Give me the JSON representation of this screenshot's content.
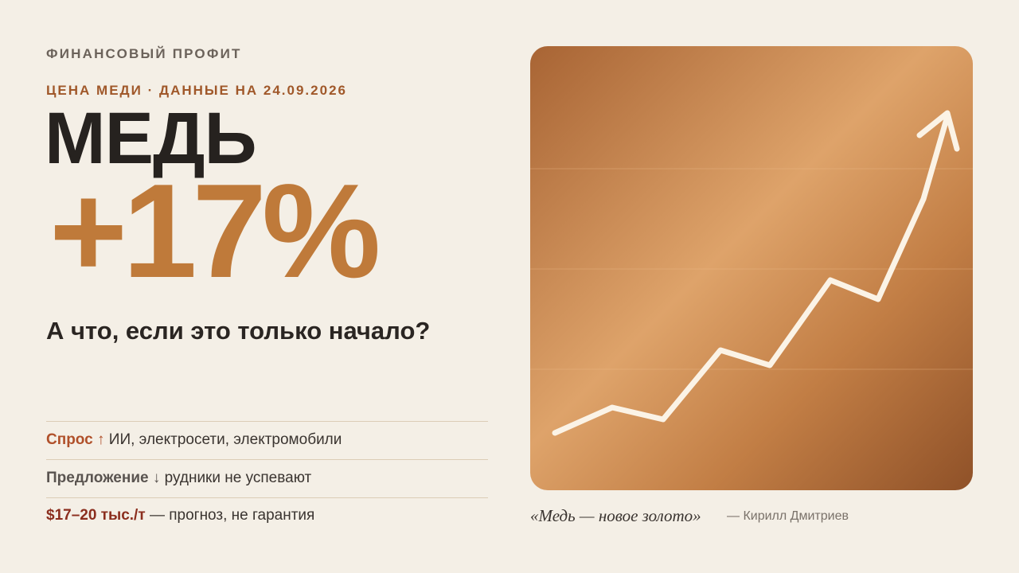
{
  "brand": "ФИНАНСОВЫЙ ПРОФИТ",
  "kicker": "ЦЕНА МЕДИ · ДАННЫЕ НА 24.09.2026",
  "title": "МЕДЬ",
  "headline_figure": "+17%",
  "question": "А что, если это только начало?",
  "points": [
    {
      "label": "Спрос",
      "arrow": "↑",
      "text": "ИИ, электросети, электромобили"
    },
    {
      "label": "Предложение",
      "arrow": "↓",
      "text": "рудники не успевают"
    },
    {
      "label": "$17–20 тыс./т",
      "text": "— прогноз, не гарантия"
    }
  ],
  "quote": {
    "text": "«Медь — новое золото»",
    "author": "— Кирилл Дмитриев"
  }
}
